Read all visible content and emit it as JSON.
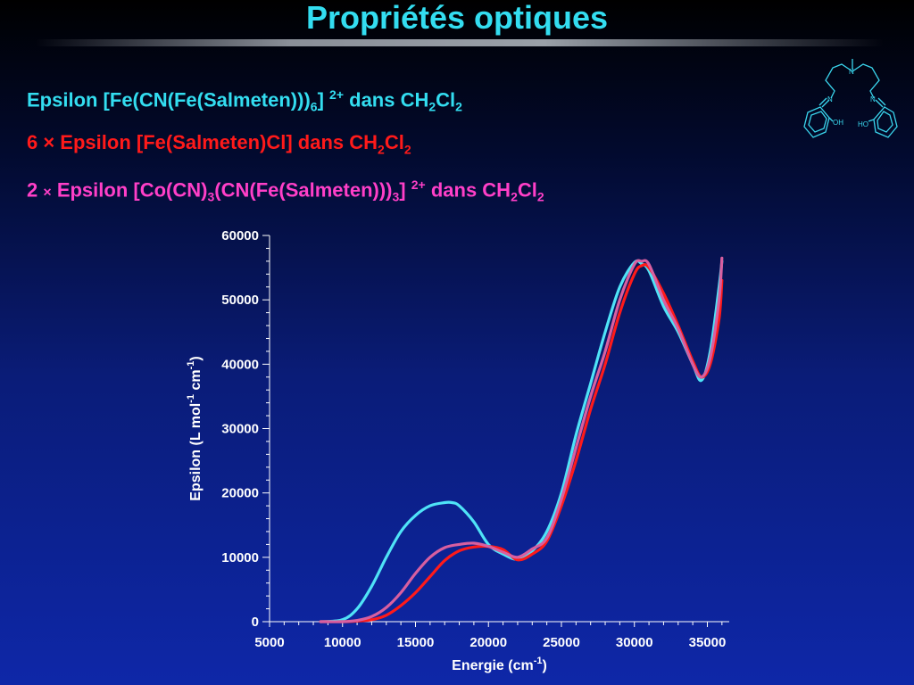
{
  "slide": {
    "title": "Propriétés optiques"
  },
  "legend": {
    "line1": {
      "pre": "Epsilon [Fe(CN(Fe(Salmeten)))",
      "sub1": "6",
      "post1": "] ",
      "sup": "2+",
      "post2": " dans CH",
      "sub2": "2",
      "post3": "Cl",
      "sub3": "2",
      "color": "#33ddf0"
    },
    "line2": {
      "pre": "6 × Epsilon [Fe(Salmeten)Cl] dans CH",
      "sub1": "2",
      "post1": "Cl",
      "sub2": "2",
      "color": "#ff1a1a"
    },
    "line3": {
      "pre": "2 ",
      "mult": "×",
      "post0": " Epsilon [Co(CN)",
      "sub1": "3",
      "post1": "(CN(Fe(Salmeten)))",
      "sub2": "3",
      "post2": "] ",
      "sup": "2+",
      "post3": " dans CH",
      "sub3": "2",
      "post4": "Cl",
      "sub4": "2",
      "color": "#ff3fc8"
    }
  },
  "molecule": {
    "icon": "salmeten-structure-icon",
    "labels": {
      "n_top": "N",
      "n_left": "N",
      "n_right": "N",
      "oh": "OH",
      "ho": "HO"
    }
  },
  "chart_data": {
    "type": "line",
    "xlabel": {
      "main": "Energie (cm",
      "sup": "-1",
      "end": ")"
    },
    "ylabel": {
      "main": "Epsilon (L mol",
      "sup1": "-1",
      "mid": " cm",
      "sup2": "-1",
      "end": ")"
    },
    "xlim": [
      5000,
      36500
    ],
    "ylim": [
      0,
      60000
    ],
    "xticks": [
      5000,
      10000,
      15000,
      20000,
      25000,
      30000,
      35000
    ],
    "yticks": [
      0,
      10000,
      20000,
      30000,
      40000,
      50000,
      60000
    ],
    "grid": false,
    "series": [
      {
        "color": "#4fe3f7",
        "x": [
          8500,
          10000,
          11000,
          12000,
          13000,
          14000,
          15000,
          16000,
          17000,
          17500,
          18000,
          19000,
          20000,
          21000,
          22000,
          23000,
          24000,
          25000,
          26000,
          27000,
          28000,
          29000,
          30000,
          30500,
          31000,
          32000,
          33000,
          34000,
          34600,
          35200,
          35800,
          36000
        ],
        "y": [
          0,
          300,
          2000,
          5500,
          10000,
          14000,
          16500,
          18000,
          18500,
          18500,
          18000,
          15500,
          12000,
          10500,
          9700,
          11000,
          14000,
          20000,
          29000,
          37000,
          45000,
          52000,
          55800,
          55600,
          54500,
          49000,
          45000,
          40000,
          37500,
          42000,
          52000,
          56000
        ]
      },
      {
        "color": "#ff1a1a",
        "x": [
          8500,
          10000,
          11000,
          12000,
          13000,
          14000,
          15000,
          16000,
          17000,
          18000,
          19000,
          20000,
          21000,
          22000,
          23000,
          24000,
          25000,
          26000,
          27000,
          28000,
          29000,
          30000,
          30500,
          31000,
          32000,
          33000,
          34000,
          34600,
          35200,
          35800,
          36000
        ],
        "y": [
          0,
          0,
          100,
          300,
          1000,
          2500,
          4500,
          7000,
          9500,
          11000,
          11600,
          11700,
          11200,
          9600,
          10500,
          12500,
          18000,
          25000,
          33000,
          40000,
          48000,
          54000,
          55300,
          55000,
          51000,
          46000,
          40500,
          38000,
          40000,
          47000,
          53000
        ]
      },
      {
        "color": "#d85fa0",
        "x": [
          8500,
          10000,
          11000,
          12000,
          13000,
          14000,
          15000,
          16000,
          17000,
          18000,
          19000,
          20000,
          21000,
          22000,
          23000,
          24000,
          25000,
          26000,
          27000,
          28000,
          29000,
          30000,
          30500,
          31000,
          32000,
          33000,
          34000,
          34600,
          35200,
          35800,
          36000
        ],
        "y": [
          0,
          0,
          200,
          800,
          2200,
          4500,
          7500,
          10000,
          11500,
          12000,
          12200,
          11700,
          10800,
          10000,
          11300,
          13000,
          19000,
          27000,
          35000,
          42000,
          50000,
          55500,
          56000,
          55500,
          50000,
          45500,
          40000,
          38000,
          41000,
          50000,
          56500
        ]
      }
    ]
  }
}
